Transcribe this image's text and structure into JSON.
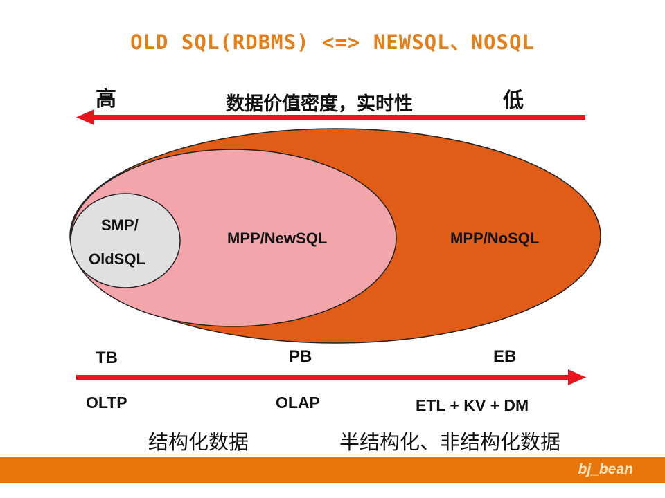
{
  "title": "OLD SQL(RDBMS) <=> NEWSQL、NOSQL",
  "top_axis": {
    "high": "高",
    "low": "低",
    "label": "数据价值密度，实时性"
  },
  "ellipses": {
    "oldsql": {
      "line1": "SMP/",
      "line2": "OldSQL"
    },
    "newsql": "MPP/NewSQL",
    "nosql": "MPP/NoSQL"
  },
  "bottom_axis": {
    "scales": [
      "TB",
      "PB",
      "EB"
    ],
    "workloads": [
      "OLTP",
      "OLAP",
      "ETL + KV + DM"
    ],
    "data_types": [
      "结构化数据",
      "半结构化、非结构化数据"
    ]
  },
  "footer": {
    "author": "bj_bean"
  },
  "colors": {
    "title": "#e57e16",
    "arrow": "#e8141b",
    "nosql": "#e15c17",
    "newsql": "#f2a5aa",
    "oldsql": "#e0e0e0",
    "footer": "#e8760a"
  }
}
